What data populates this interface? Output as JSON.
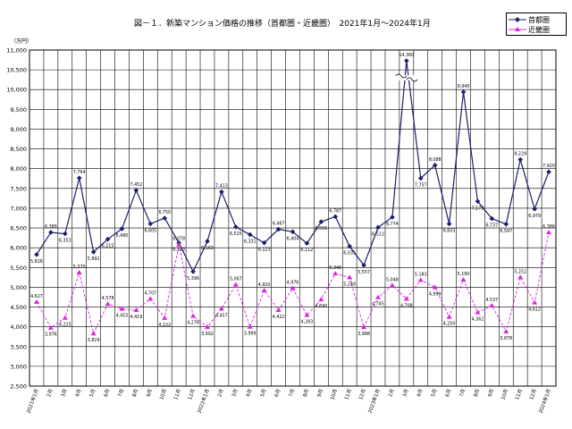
{
  "chart_data": {
    "type": "line",
    "title": "図－１．新築マンション価格の推移（首都圏・近畿圏）　2021年1月～2024年1月",
    "unit_label": "（万円）",
    "ylim": [
      2500,
      11000
    ],
    "ytick_step": 500,
    "yticks": [
      "2,500",
      "3,000",
      "3,500",
      "4,000",
      "4,500",
      "5,000",
      "5,500",
      "6,000",
      "6,500",
      "7,000",
      "7,500",
      "8,000",
      "8,500",
      "9,000",
      "9,500",
      "10,000",
      "10,500",
      "11,000"
    ],
    "categories": [
      "2021年1月",
      "2月",
      "3月",
      "4月",
      "5月",
      "6月",
      "7月",
      "8月",
      "9月",
      "10月",
      "11月",
      "12月",
      "2022年1月",
      "2月",
      "3月",
      "4月",
      "5月",
      "6月",
      "7月",
      "8月",
      "9月",
      "10月",
      "11月",
      "12月",
      "2023年1月",
      "2月",
      "3月",
      "4月",
      "5月",
      "6月",
      "7月",
      "8月",
      "9月",
      "10月",
      "11月",
      "12月",
      "2024年1月"
    ],
    "grid": true,
    "legend": "top-right",
    "axis_break_index": 26,
    "series": [
      {
        "name": "首都圏",
        "color": "#1b1f6e",
        "marker": "diamond",
        "values": [
          5826,
          6389,
          6353,
          7764,
          5892,
          6215,
          6480,
          7452,
          6605,
          6750,
          6123,
          5396,
          6163,
          7413,
          6525,
          6331,
          6123,
          6467,
          6404,
          6112,
          6656,
          6787,
          6035,
          5557,
          6513,
          6774,
          14360,
          7757,
          8088,
          6603,
          9940,
          7173,
          6737,
          6597,
          8229,
          6979,
          7920
        ],
        "labels": [
          "5,826",
          "6,389",
          "6,353",
          "7,764",
          "5,892",
          "6,215",
          "6,480",
          "7,452",
          "6,605",
          "6,750",
          "6,123",
          "5,396",
          "6,163",
          "7,413",
          "6,525",
          "6,331",
          "6,123",
          "6,467",
          "6,404",
          "6,112",
          "6,656",
          "6,787",
          "6,035",
          "5,557",
          "6,513",
          "6,774",
          "14,360",
          "7,757",
          "8,088",
          "6,603",
          "9,940",
          "7,173",
          "6,737",
          "6,597",
          "8,229",
          "6,979",
          "7,920"
        ]
      },
      {
        "name": "近畿圏",
        "color": "#dd22dd",
        "marker": "triangle",
        "values": [
          4627,
          3976,
          4225,
          5370,
          3829,
          4578,
          4453,
          4419,
          4707,
          4222,
          6078,
          4276,
          3992,
          4457,
          5067,
          3999,
          4920,
          4422,
          4976,
          4293,
          4690,
          5346,
          5248,
          3988,
          4745,
          5048,
          4708,
          5183,
          4999,
          4250,
          5190,
          4362,
          4537,
          3878,
          5252,
          4612,
          6386
        ],
        "labels": [
          "4,627",
          "3,976",
          "4,225",
          "5,370",
          "3,829",
          "4,578",
          "4,453",
          "4,419",
          "4,707",
          "4,222",
          "6,078",
          "4,276",
          "3,992",
          "4,457",
          "5,067",
          "3,999",
          "4,920",
          "4,422",
          "4,976",
          "4,293",
          "4,690",
          "5,346",
          "5,248",
          "3,988",
          "4,745",
          "5,048",
          "4,708",
          "5,183",
          "4,999",
          "4,250",
          "5,190",
          "4,362",
          "4,537",
          "3,878",
          "5,252",
          "4,612",
          "6,386"
        ]
      }
    ]
  }
}
